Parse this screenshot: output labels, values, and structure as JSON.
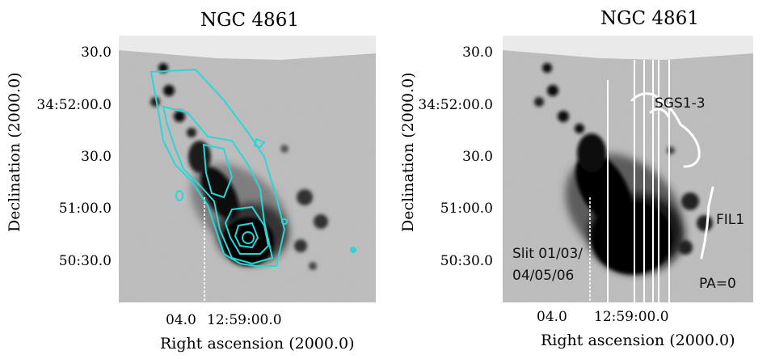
{
  "left": {
    "title": "NGC 4861",
    "ylabel": "Declination (2000.0)",
    "xlabel": "Right ascension (2000.0)",
    "yticks": [
      "30.0",
      "34:52:00.0",
      "30.0",
      "51:00.0",
      "50:30.0"
    ],
    "xticks": [
      "04.0",
      "12:59:00.0"
    ]
  },
  "right": {
    "title": "NGC 4861",
    "ylabel": "Declination (2000.0)",
    "xlabel": "Right ascension (2000.0)",
    "yticks": [
      "30.0",
      "34:52:00.0",
      "30.0",
      "51:00.0",
      "50:30.0"
    ],
    "xticks": [
      "04.0",
      "12:59:00.0"
    ],
    "labels": {
      "sgs": "SGS1-3",
      "fil": "FIL1",
      "slit_line1": "Slit 01/03/",
      "slit_line2": "04/05/06",
      "pa": "PA=0"
    }
  },
  "colors": {
    "contour": "#2ad6d6",
    "overlay": "#ffffff",
    "background": "#bdbdbd"
  }
}
